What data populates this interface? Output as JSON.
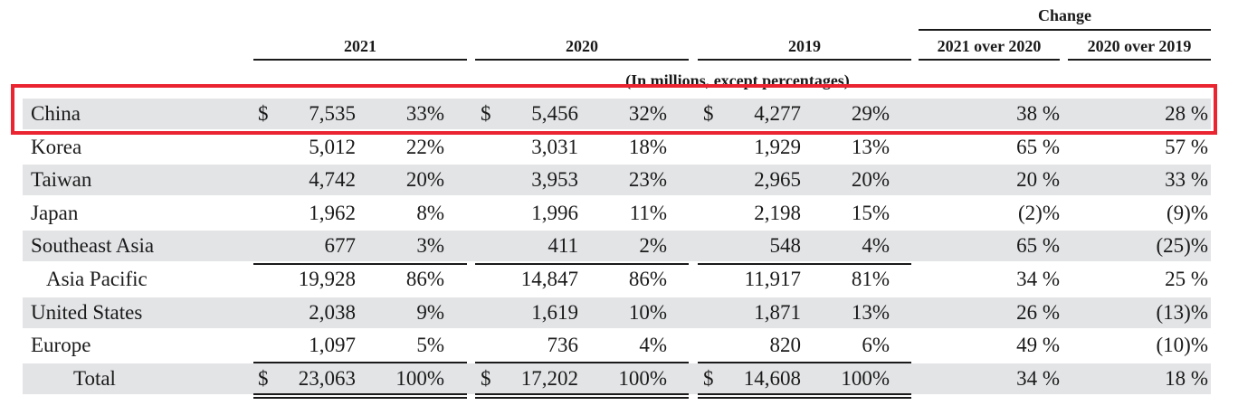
{
  "header": {
    "change_label": "Change",
    "columns": [
      "2021",
      "2020",
      "2019",
      "2021 over 2020",
      "2020 over 2019"
    ],
    "note": "(In millions, except percentages)"
  },
  "rows": [
    {
      "label": "China",
      "v2021": "7,535",
      "p2021": "33%",
      "v2020": "5,456",
      "p2020": "32%",
      "v2019": "4,277",
      "p2019": "29%",
      "c1": "38 %",
      "c2": "28 %",
      "dollar": "$",
      "highlighted": true
    },
    {
      "label": "Korea",
      "v2021": "5,012",
      "p2021": "22%",
      "v2020": "3,031",
      "p2020": "18%",
      "v2019": "1,929",
      "p2019": "13%",
      "c1": "65 %",
      "c2": "57 %"
    },
    {
      "label": "Taiwan",
      "v2021": "4,742",
      "p2021": "20%",
      "v2020": "3,953",
      "p2020": "23%",
      "v2019": "2,965",
      "p2019": "20%",
      "c1": "20 %",
      "c2": "33 %"
    },
    {
      "label": "Japan",
      "v2021": "1,962",
      "p2021": "8%",
      "v2020": "1,996",
      "p2020": "11%",
      "v2019": "2,198",
      "p2019": "15%",
      "c1": "(2)%",
      "c2": "(9)%"
    },
    {
      "label": "Southeast Asia",
      "v2021": "677",
      "p2021": "3%",
      "v2020": "411",
      "p2020": "2%",
      "v2019": "548",
      "p2019": "4%",
      "c1": "65 %",
      "c2": "(25)%"
    },
    {
      "label": "Asia Pacific",
      "v2021": "19,928",
      "p2021": "86%",
      "v2020": "14,847",
      "p2020": "86%",
      "v2019": "11,917",
      "p2019": "81%",
      "c1": "34 %",
      "c2": "25 %"
    },
    {
      "label": "United States",
      "v2021": "2,038",
      "p2021": "9%",
      "v2020": "1,619",
      "p2020": "10%",
      "v2019": "1,871",
      "p2019": "13%",
      "c1": "26 %",
      "c2": "(13)%"
    },
    {
      "label": "Europe",
      "v2021": "1,097",
      "p2021": "5%",
      "v2020": "736",
      "p2020": "4%",
      "v2019": "820",
      "p2019": "6%",
      "c1": "49 %",
      "c2": "(10)%"
    },
    {
      "label": "Total",
      "v2021": "23,063",
      "p2021": "100%",
      "v2020": "17,202",
      "p2020": "100%",
      "v2019": "14,608",
      "p2019": "100%",
      "c1": "34 %",
      "c2": "18 %",
      "dollar": "$"
    }
  ],
  "colors": {
    "shade": "#e3e4e6",
    "highlight": "#ea2430"
  }
}
